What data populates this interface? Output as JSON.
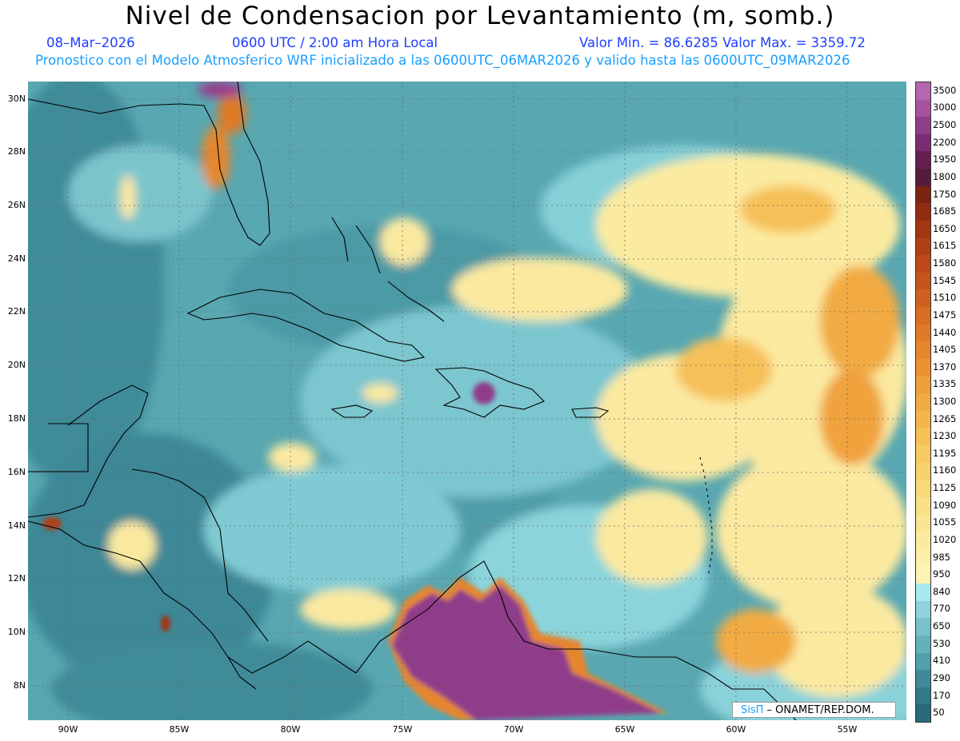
{
  "title": "Nivel de Condensacion por Levantamiento (m, somb.)",
  "date": "08–Mar–2026",
  "time": "0600 UTC / 2:00 am Hora Local",
  "minmax": "Valor Min. = 86.6285   Valor Max. = 3359.72",
  "model_line": "Pronostico con el Modelo Atmosferico WRF inicializado a las 0600UTC_06MAR2026 y valido hasta las  0600UTC_09MAR2026",
  "credit": {
    "brand": "SisΠ",
    "org": " – ONAMET/REP.DOM."
  },
  "lat_labels": [
    "30N",
    "28N",
    "26N",
    "24N",
    "22N",
    "20N",
    "18N",
    "16N",
    "14N",
    "12N",
    "10N",
    "8N"
  ],
  "lon_labels": [
    "90W",
    "85W",
    "80W",
    "75W",
    "70W",
    "65W",
    "60W",
    "55W"
  ],
  "colorbar": {
    "labels": [
      "3500",
      "3000",
      "2500",
      "2200",
      "1950",
      "1800",
      "1750",
      "1685",
      "1650",
      "1615",
      "1580",
      "1545",
      "1510",
      "1475",
      "1440",
      "1405",
      "1370",
      "1335",
      "1300",
      "1265",
      "1230",
      "1195",
      "1160",
      "1125",
      "1090",
      "1055",
      "1020",
      "985",
      "950",
      "840",
      "770",
      "650",
      "530",
      "410",
      "290",
      "170",
      "50"
    ],
    "colors": [
      "#b566b0",
      "#a7519f",
      "#8f3d8a",
      "#7a2c72",
      "#65204f",
      "#561a3b",
      "#7b2311",
      "#8f2c11",
      "#a33513",
      "#b03f15",
      "#bd4918",
      "#c6541c",
      "#cf601f",
      "#d86d23",
      "#df7a28",
      "#e5862d",
      "#eb9333",
      "#ef9f3a",
      "#f2ab43",
      "#f4b64c",
      "#f6c057",
      "#f7c962",
      "#f8d16d",
      "#f9d879",
      "#fadf85",
      "#fae592",
      "#fbeb9e",
      "#fcefa9",
      "#fdf3b4",
      "#a6e8ee",
      "#8fd3dc",
      "#78c1cb",
      "#64b1bc",
      "#529fab",
      "#41899a",
      "#327988",
      "#276a7a"
    ]
  }
}
